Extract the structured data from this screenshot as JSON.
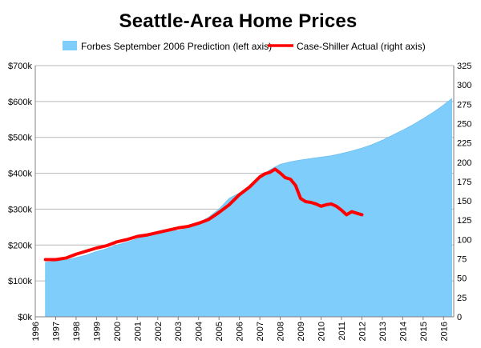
{
  "chart_data": {
    "type": "area+line",
    "title": "Seattle-Area Home Prices",
    "legend": {
      "placement": "top-center",
      "entries": [
        {
          "label": "Forbes September 2006 Prediction (left axis)",
          "color": "#7fcdfb"
        },
        {
          "label": "Case-Shiller Actual (right axis)",
          "color": "#ff0000"
        }
      ]
    },
    "x_axis": {
      "ticks": [
        "1996",
        "1997",
        "1998",
        "1999",
        "2000",
        "2001",
        "2002",
        "2003",
        "2004",
        "2005",
        "2006",
        "2007",
        "2008",
        "2009",
        "2010",
        "2011",
        "2012",
        "2013",
        "2014",
        "2015",
        "2016"
      ],
      "range": [
        1996,
        2016.5
      ]
    },
    "left_axis": {
      "ticks": [
        "$0k",
        "$100k",
        "$200k",
        "$300k",
        "$400k",
        "$500k",
        "$600k",
        "$700k"
      ],
      "range": [
        0,
        700
      ]
    },
    "right_axis": {
      "ticks": [
        "0",
        "25",
        "50",
        "75",
        "100",
        "125",
        "150",
        "175",
        "200",
        "225",
        "250",
        "275",
        "300",
        "325"
      ],
      "range": [
        0,
        325
      ]
    },
    "grid": "horizontal",
    "series": [
      {
        "name": "Forbes September 2006 Prediction (left axis)",
        "axis": "left",
        "type": "area",
        "color": "#7fcdfb",
        "x": [
          1996.5,
          1997.0,
          1997.5,
          1998.0,
          1998.5,
          1999.0,
          1999.5,
          2000.0,
          2000.5,
          2001.0,
          2001.5,
          2002.0,
          2002.5,
          2003.0,
          2003.5,
          2004.0,
          2004.5,
          2005.0,
          2005.5,
          2006.0,
          2006.5,
          2007.0,
          2007.5,
          2008.0,
          2008.5,
          2009.0,
          2009.5,
          2010.0,
          2010.5,
          2011.0,
          2011.5,
          2012.0,
          2012.5,
          2013.0,
          2013.5,
          2014.0,
          2014.5,
          2015.0,
          2015.5,
          2016.0,
          2016.4
        ],
        "values": [
          152,
          155,
          158,
          165,
          172,
          182,
          190,
          200,
          208,
          218,
          226,
          238,
          243,
          240,
          248,
          260,
          278,
          300,
          330,
          345,
          362,
          390,
          410,
          425,
          432,
          437,
          441,
          445,
          449,
          455,
          462,
          470,
          480,
          492,
          506,
          520,
          535,
          552,
          570,
          590,
          608
        ]
      },
      {
        "name": "Case-Shiller Actual (right axis)",
        "axis": "right",
        "type": "line",
        "color": "#ff0000",
        "x": [
          1996.5,
          1997.0,
          1997.5,
          1998.0,
          1998.5,
          1999.0,
          1999.5,
          2000.0,
          2000.5,
          2001.0,
          2001.5,
          2002.0,
          2002.5,
          2003.0,
          2003.5,
          2004.0,
          2004.5,
          2005.0,
          2005.5,
          2006.0,
          2006.5,
          2007.0,
          2007.25,
          2007.5,
          2007.75,
          2008.0,
          2008.25,
          2008.5,
          2008.75,
          2009.0,
          2009.25,
          2009.5,
          2009.75,
          2010.0,
          2010.25,
          2010.5,
          2010.75,
          2011.0,
          2011.25,
          2011.5,
          2011.75,
          2012.0
        ],
        "values": [
          74,
          74,
          76,
          81,
          85,
          89,
          92,
          97,
          100,
          104,
          106,
          109,
          112,
          115,
          117,
          121,
          126,
          135,
          145,
          158,
          168,
          181,
          185,
          187,
          191,
          186,
          180,
          178,
          170,
          153,
          149,
          148,
          146,
          143,
          145,
          146,
          143,
          138,
          132,
          136,
          134,
          132
        ]
      }
    ]
  }
}
